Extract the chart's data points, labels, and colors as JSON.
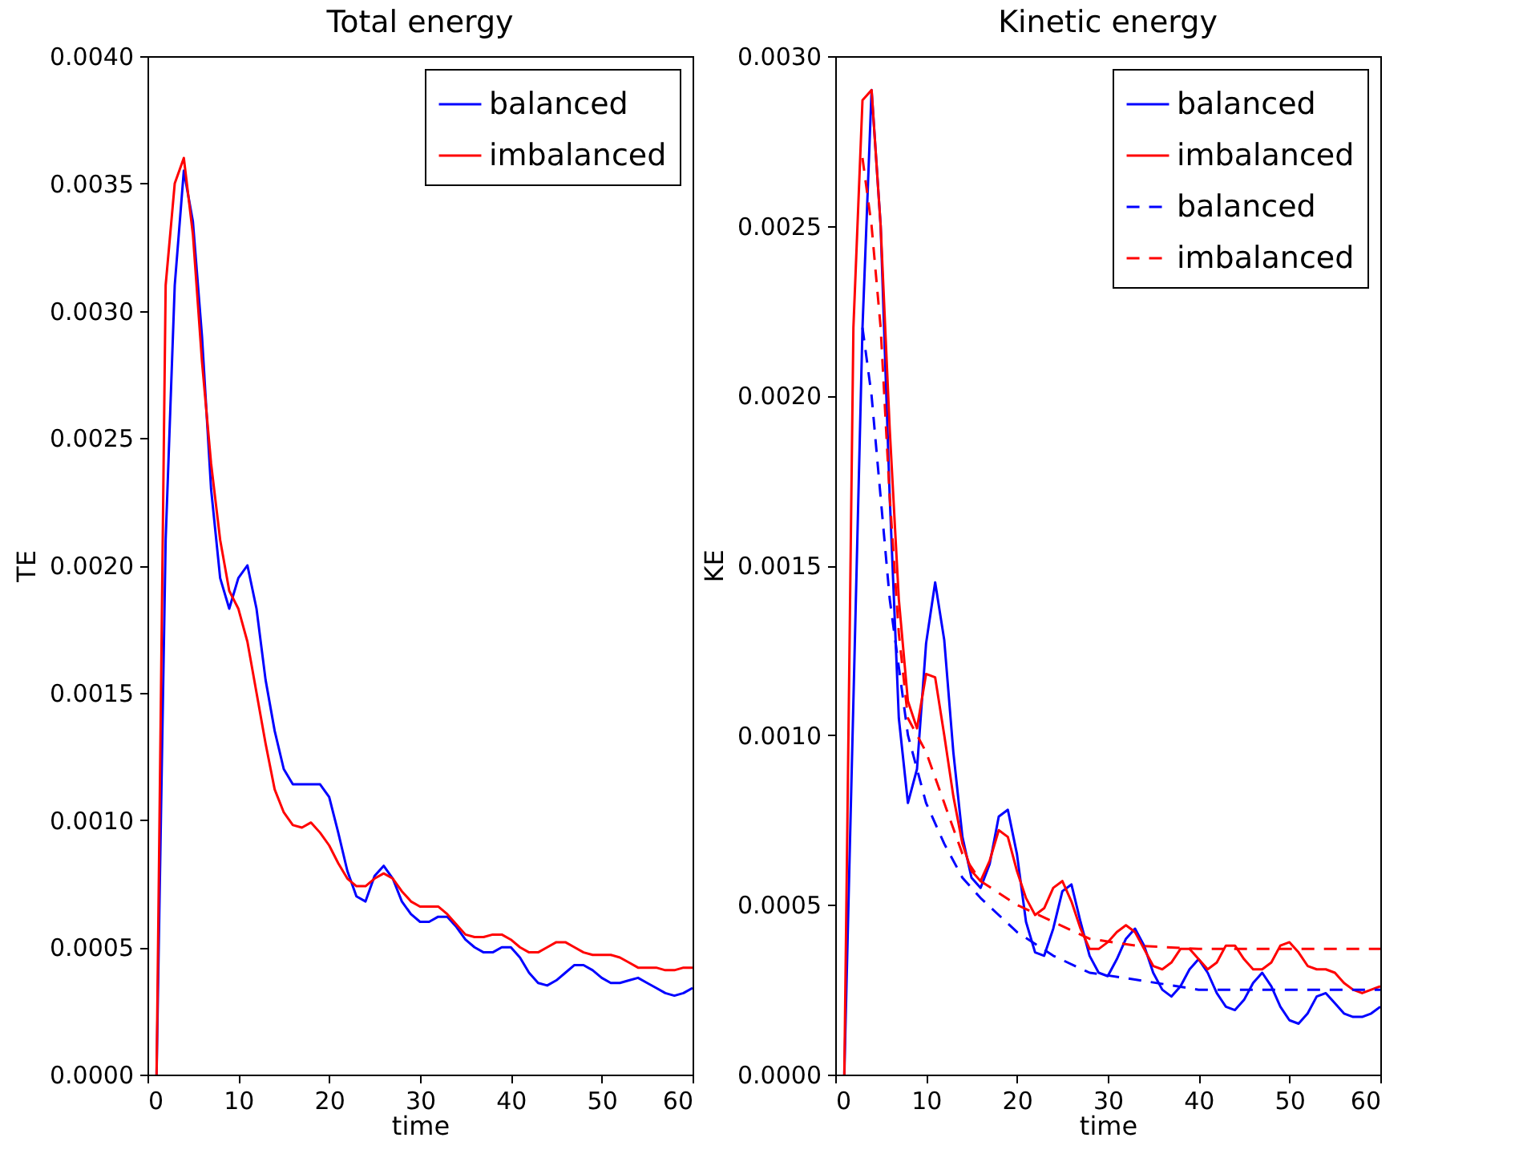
{
  "chart_data": [
    {
      "type": "line",
      "title": "Total energy",
      "xlabel": "time",
      "ylabel": "TE",
      "xlim": [
        0,
        60
      ],
      "ylim": [
        0,
        0.004
      ],
      "xticks": [
        0,
        10,
        20,
        30,
        40,
        50,
        60
      ],
      "yticks": [
        {
          "value": 0,
          "label": "0.0000"
        },
        {
          "value": 0.0005,
          "label": "0.0005"
        },
        {
          "value": 0.001,
          "label": "0.0010"
        },
        {
          "value": 0.0015,
          "label": "0.0015"
        },
        {
          "value": 0.002,
          "label": "0.0020"
        },
        {
          "value": 0.0025,
          "label": "0.0025"
        },
        {
          "value": 0.003,
          "label": "0.0030"
        },
        {
          "value": 0.0035,
          "label": "0.0035"
        },
        {
          "value": 0.004,
          "label": "0.0040"
        }
      ],
      "grid": false,
      "legend": "top right",
      "line_style": "solid",
      "x": [
        1,
        2,
        3,
        4,
        5,
        6,
        7,
        8,
        9,
        10,
        11,
        12,
        13,
        14,
        15,
        16,
        17,
        18,
        19,
        20,
        21,
        22,
        23,
        24,
        25,
        26,
        27,
        28,
        29,
        30,
        31,
        32,
        33,
        34,
        35,
        36,
        37,
        38,
        39,
        40,
        41,
        42,
        43,
        44,
        45,
        46,
        47,
        48,
        49,
        50,
        51,
        52,
        53,
        54,
        55,
        56,
        57,
        58,
        59,
        60
      ],
      "series": [
        {
          "name": "balanced",
          "color": "#0000ff",
          "values": [
            0,
            0.0021,
            0.0031,
            0.00355,
            0.00335,
            0.0029,
            0.0023,
            0.00195,
            0.00183,
            0.00195,
            0.002,
            0.00183,
            0.00155,
            0.00135,
            0.0012,
            0.00114,
            0.00114,
            0.00114,
            0.00114,
            0.00109,
            0.00095,
            0.0008,
            0.0007,
            0.00068,
            0.00078,
            0.00082,
            0.00077,
            0.00068,
            0.00063,
            0.0006,
            0.0006,
            0.00062,
            0.00062,
            0.00058,
            0.00053,
            0.0005,
            0.00048,
            0.00048,
            0.0005,
            0.0005,
            0.00046,
            0.0004,
            0.00036,
            0.00035,
            0.00037,
            0.0004,
            0.00043,
            0.00043,
            0.00041,
            0.00038,
            0.00036,
            0.00036,
            0.00037,
            0.00038,
            0.00036,
            0.00034,
            0.00032,
            0.00031,
            0.00032,
            0.00034
          ]
        },
        {
          "name": "imbalanced",
          "color": "#ff0000",
          "values": [
            0,
            0.0031,
            0.0035,
            0.0036,
            0.0033,
            0.0028,
            0.0024,
            0.0021,
            0.0019,
            0.00183,
            0.0017,
            0.0015,
            0.0013,
            0.00112,
            0.00103,
            0.00098,
            0.00097,
            0.00099,
            0.00095,
            0.0009,
            0.00083,
            0.00077,
            0.00074,
            0.00074,
            0.00077,
            0.00079,
            0.00077,
            0.00072,
            0.00068,
            0.00066,
            0.00066,
            0.00066,
            0.00063,
            0.00059,
            0.00055,
            0.00054,
            0.00054,
            0.00055,
            0.00055,
            0.00053,
            0.0005,
            0.00048,
            0.00048,
            0.0005,
            0.00052,
            0.00052,
            0.0005,
            0.00048,
            0.00047,
            0.00047,
            0.00047,
            0.00046,
            0.00044,
            0.00042,
            0.00042,
            0.00042,
            0.00041,
            0.00041,
            0.00042,
            0.00042
          ]
        }
      ]
    },
    {
      "type": "line",
      "title": "Kinetic energy",
      "xlabel": "time",
      "ylabel": "KE",
      "xlim": [
        0,
        60
      ],
      "ylim": [
        0,
        0.003
      ],
      "xticks": [
        0,
        10,
        20,
        30,
        40,
        50,
        60
      ],
      "yticks": [
        {
          "value": 0,
          "label": "0.0000"
        },
        {
          "value": 0.0005,
          "label": "0.0005"
        },
        {
          "value": 0.001,
          "label": "0.0010"
        },
        {
          "value": 0.0015,
          "label": "0.0015"
        },
        {
          "value": 0.002,
          "label": "0.0020"
        },
        {
          "value": 0.0025,
          "label": "0.0025"
        },
        {
          "value": 0.003,
          "label": "0.0030"
        }
      ],
      "grid": false,
      "legend": "top right",
      "x": [
        1,
        2,
        3,
        4,
        5,
        6,
        7,
        8,
        9,
        10,
        11,
        12,
        13,
        14,
        15,
        16,
        17,
        18,
        19,
        20,
        21,
        22,
        23,
        24,
        25,
        26,
        27,
        28,
        29,
        30,
        31,
        32,
        33,
        34,
        35,
        36,
        37,
        38,
        39,
        40,
        41,
        42,
        43,
        44,
        45,
        46,
        47,
        48,
        49,
        50,
        51,
        52,
        53,
        54,
        55,
        56,
        57,
        58,
        59,
        60
      ],
      "series": [
        {
          "name": "balanced",
          "color": "#0000ff",
          "line_style": "solid",
          "values": [
            0,
            0.0011,
            0.0022,
            0.0029,
            0.0025,
            0.0017,
            0.00105,
            0.0008,
            0.0009,
            0.00127,
            0.00145,
            0.00128,
            0.00095,
            0.0007,
            0.00058,
            0.00055,
            0.00062,
            0.00076,
            0.00078,
            0.00065,
            0.00045,
            0.00036,
            0.00035,
            0.00043,
            0.00054,
            0.00056,
            0.00045,
            0.00035,
            0.0003,
            0.00029,
            0.00034,
            0.0004,
            0.00043,
            0.00038,
            0.0003,
            0.00025,
            0.00023,
            0.00026,
            0.00031,
            0.00034,
            0.0003,
            0.00024,
            0.0002,
            0.00019,
            0.00022,
            0.00027,
            0.0003,
            0.00026,
            0.0002,
            0.00016,
            0.00015,
            0.00018,
            0.00023,
            0.00024,
            0.00021,
            0.00018,
            0.00017,
            0.00017,
            0.00018,
            0.0002
          ]
        },
        {
          "name": "imbalanced",
          "color": "#ff0000",
          "line_style": "solid",
          "values": [
            0,
            0.0022,
            0.00287,
            0.0029,
            0.0025,
            0.0019,
            0.0014,
            0.0011,
            0.00102,
            0.00118,
            0.00117,
            0.001,
            0.00082,
            0.00068,
            0.0006,
            0.00057,
            0.00063,
            0.00072,
            0.0007,
            0.0006,
            0.00052,
            0.00047,
            0.00049,
            0.00055,
            0.00057,
            0.00051,
            0.00043,
            0.00037,
            0.00037,
            0.00039,
            0.00042,
            0.00044,
            0.00042,
            0.00037,
            0.00032,
            0.00031,
            0.00033,
            0.00037,
            0.00037,
            0.00034,
            0.00031,
            0.00033,
            0.00038,
            0.00038,
            0.00034,
            0.00031,
            0.00031,
            0.00033,
            0.00038,
            0.00039,
            0.00036,
            0.00032,
            0.00031,
            0.00031,
            0.0003,
            0.00027,
            0.00025,
            0.00024,
            0.00025,
            0.00026
          ]
        },
        {
          "name": "balanced",
          "color": "#0000ff",
          "line_style": "dashed",
          "x": [
            3,
            4,
            5,
            6,
            7,
            8,
            10,
            12,
            14,
            16,
            20,
            24,
            28,
            33,
            40,
            50,
            60
          ],
          "values": [
            0.0022,
            0.002,
            0.0017,
            0.0014,
            0.0012,
            0.001,
            0.0008,
            0.00068,
            0.00058,
            0.00052,
            0.00042,
            0.00035,
            0.0003,
            0.00028,
            0.00025,
            0.00025,
            0.00025
          ]
        },
        {
          "name": "imbalanced",
          "color": "#ff0000",
          "line_style": "dashed",
          "x": [
            3,
            4,
            5,
            6,
            7,
            8,
            10,
            12,
            14,
            16,
            20,
            24,
            28,
            33,
            40,
            50,
            60
          ],
          "values": [
            0.0027,
            0.0025,
            0.0022,
            0.0017,
            0.0013,
            0.00105,
            0.00095,
            0.0008,
            0.00065,
            0.00057,
            0.0005,
            0.00045,
            0.0004,
            0.00038,
            0.00037,
            0.00037,
            0.00037
          ]
        }
      ]
    }
  ]
}
